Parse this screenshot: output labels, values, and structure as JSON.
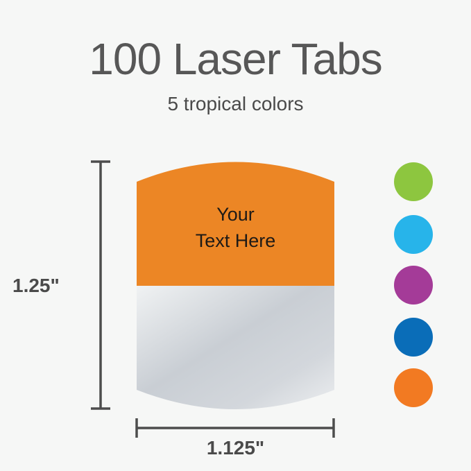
{
  "title": "100 Laser Tabs",
  "subtitle": "5 tropical colors",
  "tab": {
    "text_line1": "Your",
    "text_line2": "Text Here",
    "color": "#ec8625"
  },
  "dimensions": {
    "height": "1.25\"",
    "width": "1.125\""
  },
  "colors": [
    {
      "name": "green",
      "hex": "#8dc63f"
    },
    {
      "name": "sky-blue",
      "hex": "#27b4ea"
    },
    {
      "name": "purple",
      "hex": "#a43b98"
    },
    {
      "name": "blue",
      "hex": "#0a6db8"
    },
    {
      "name": "orange",
      "hex": "#f27a22"
    }
  ]
}
